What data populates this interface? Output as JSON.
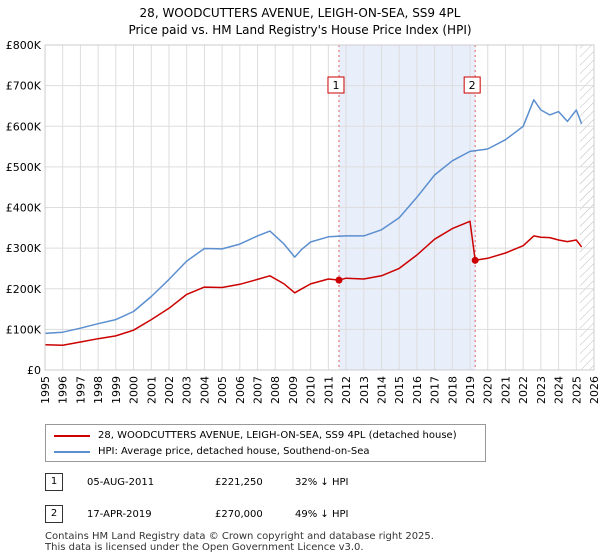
{
  "chart_data": {
    "type": "line",
    "title": "28, WOODCUTTERS AVENUE, LEIGH-ON-SEA, SS9 4PL",
    "subtitle": "Price paid vs. HM Land Registry's House Price Index (HPI)",
    "xlim": [
      1995,
      2026
    ],
    "ylim": [
      0,
      800000
    ],
    "x_ticks": [
      1995,
      1996,
      1997,
      1998,
      1999,
      2000,
      2001,
      2002,
      2003,
      2004,
      2005,
      2006,
      2007,
      2008,
      2009,
      2010,
      2011,
      2012,
      2013,
      2014,
      2015,
      2016,
      2017,
      2018,
      2019,
      2020,
      2021,
      2022,
      2023,
      2024,
      2025,
      2026
    ],
    "y_ticks": [
      {
        "value": 0,
        "label": "£0"
      },
      {
        "value": 100000,
        "label": "£100K"
      },
      {
        "value": 200000,
        "label": "£200K"
      },
      {
        "value": 300000,
        "label": "£300K"
      },
      {
        "value": 400000,
        "label": "£400K"
      },
      {
        "value": 500000,
        "label": "£500K"
      },
      {
        "value": 600000,
        "label": "£600K"
      },
      {
        "value": 700000,
        "label": "£700K"
      },
      {
        "value": 800000,
        "label": "£800K"
      }
    ],
    "shaded_range": [
      2011.6,
      2019.3
    ],
    "projection_from": 2025.2,
    "series": [
      {
        "name": "28, WOODCUTTERS AVENUE, LEIGH-ON-SEA, SS9 4PL (detached house)",
        "color": "#cc0000",
        "x": [
          1995.0,
          1996.0,
          1997.0,
          1998.0,
          1999.0,
          2000.0,
          2001.0,
          2002.0,
          2003.0,
          2004.0,
          2005.0,
          2006.0,
          2007.0,
          2007.7,
          2008.5,
          2009.1,
          2009.5,
          2010.0,
          2011.0,
          2011.6,
          2012.0,
          2013.0,
          2014.0,
          2015.0,
          2016.0,
          2017.0,
          2018.0,
          2019.0,
          2019.29,
          2020.0,
          2021.0,
          2022.0,
          2022.6,
          2023.0,
          2023.5,
          2024.0,
          2024.5,
          2025.0,
          2025.3
        ],
        "y": [
          62000,
          61000,
          69000,
          77000,
          84000,
          98000,
          124000,
          152000,
          186000,
          204000,
          203000,
          211000,
          223000,
          232000,
          212000,
          190000,
          200000,
          212000,
          224000,
          221250,
          226000,
          224000,
          232000,
          250000,
          283000,
          322000,
          348000,
          366000,
          270000,
          275000,
          288000,
          306000,
          330000,
          327000,
          326000,
          320000,
          316000,
          320000,
          303000
        ]
      },
      {
        "name": "HPI: Average price, detached house, Southend-on-Sea",
        "color": "#5b8fd0",
        "x": [
          1995.0,
          1996.0,
          1997.0,
          1998.0,
          1999.0,
          2000.0,
          2001.0,
          2002.0,
          2003.0,
          2004.0,
          2005.0,
          2006.0,
          2007.0,
          2007.7,
          2008.5,
          2009.1,
          2009.5,
          2010.0,
          2011.0,
          2012.0,
          2013.0,
          2014.0,
          2015.0,
          2016.0,
          2017.0,
          2018.0,
          2019.0,
          2020.0,
          2021.0,
          2022.0,
          2022.6,
          2023.0,
          2023.5,
          2024.0,
          2024.5,
          2025.0,
          2025.3
        ],
        "y": [
          90000,
          93000,
          103000,
          114000,
          124000,
          144000,
          181000,
          223000,
          268000,
          299000,
          298000,
          310000,
          330000,
          342000,
          310000,
          278000,
          297000,
          315000,
          328000,
          330000,
          330000,
          345000,
          375000,
          425000,
          480000,
          515000,
          538000,
          544000,
          567000,
          600000,
          665000,
          640000,
          628000,
          636000,
          612000,
          640000,
          606000
        ]
      }
    ],
    "transactions": [
      {
        "id": "1",
        "x": 2011.6,
        "price": 221250,
        "date": "05-AUG-2011",
        "price_label": "£221,250",
        "hpi_label": "32% ↓ HPI"
      },
      {
        "id": "2",
        "x": 2019.29,
        "price": 270000,
        "date": "17-APR-2019",
        "price_label": "£270,000",
        "hpi_label": "49% ↓ HPI"
      }
    ]
  },
  "footer": {
    "line1": "Contains HM Land Registry data © Crown copyright and database right 2025.",
    "line2": "This data is licensed under the Open Government Licence v3.0."
  }
}
